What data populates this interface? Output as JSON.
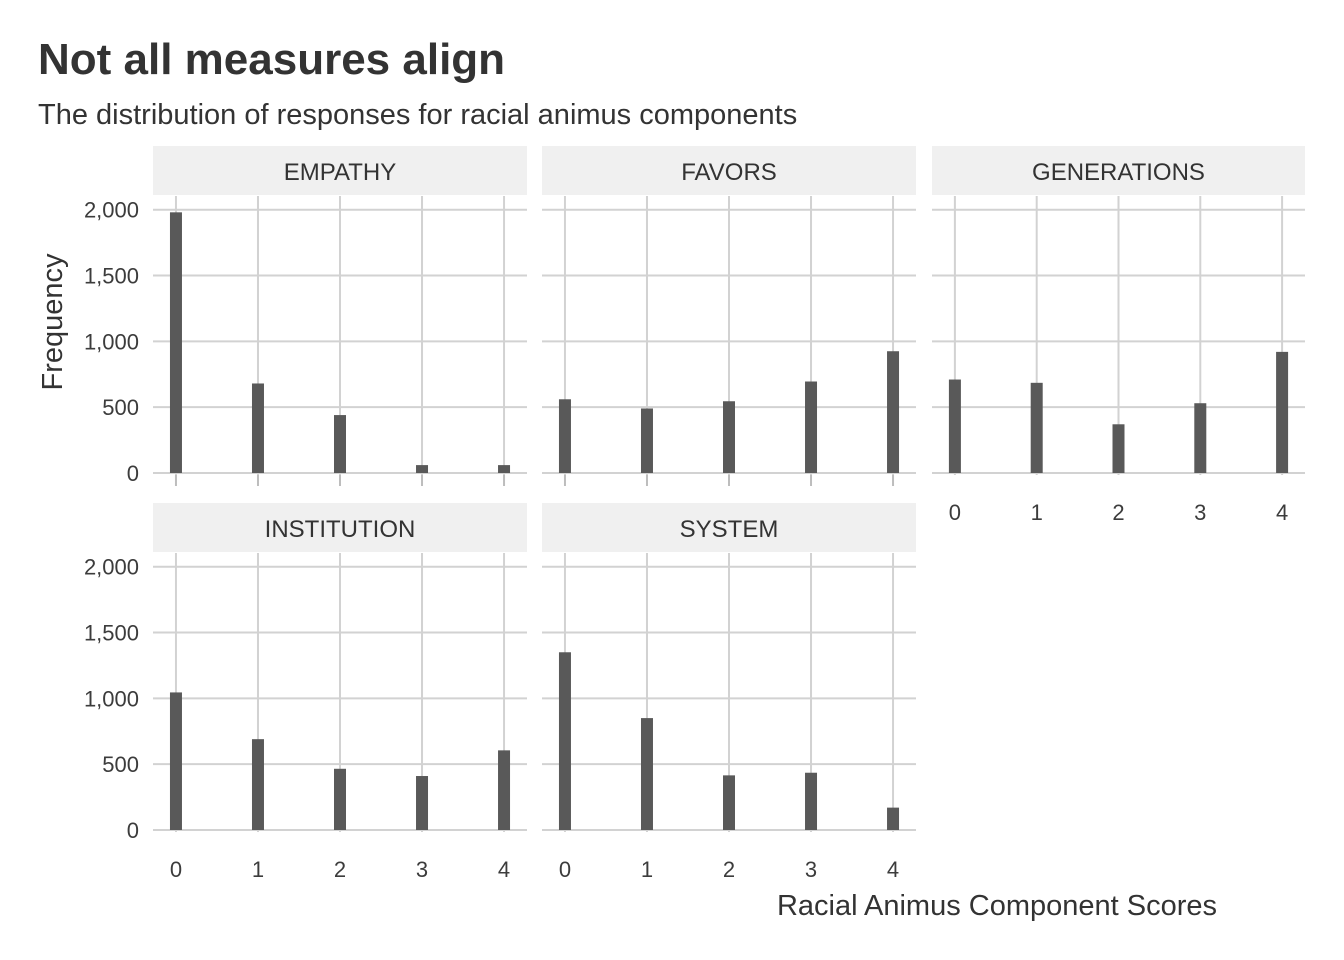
{
  "chart_data": {
    "type": "bar",
    "title": "Not all measures align",
    "subtitle": "The distribution of responses for racial animus components",
    "xlabel": "Racial Animus Component Scores",
    "ylabel": "Frequency",
    "x": [
      0,
      1,
      2,
      3,
      4
    ],
    "x_tick_labels": [
      "0",
      "1",
      "2",
      "3",
      "4"
    ],
    "ylim": [
      0,
      2000
    ],
    "y_ticks": [
      0,
      500,
      1000,
      1500,
      2000
    ],
    "y_tick_labels": [
      "0",
      "500",
      "1,000",
      "1,500",
      "2,000"
    ],
    "grid": true,
    "bar_color": "#595959",
    "panels": [
      {
        "label": "EMPATHY",
        "values": [
          1980,
          680,
          440,
          60,
          60
        ]
      },
      {
        "label": "FAVORS",
        "values": [
          560,
          490,
          545,
          695,
          925
        ]
      },
      {
        "label": "GENERATIONS",
        "values": [
          710,
          685,
          370,
          530,
          920
        ]
      },
      {
        "label": "INSTITUTION",
        "values": [
          1045,
          690,
          465,
          410,
          605
        ]
      },
      {
        "label": "SYSTEM",
        "values": [
          1350,
          850,
          415,
          435,
          170
        ]
      }
    ]
  }
}
